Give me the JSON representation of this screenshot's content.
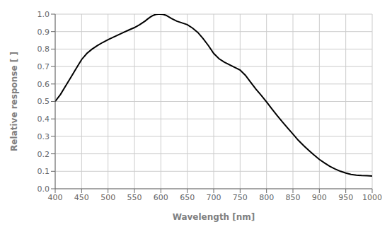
{
  "chart_data": {
    "type": "line",
    "xlabel": "Wavelength [nm]",
    "ylabel": "Relative response [ ]",
    "x": [
      400,
      410,
      420,
      430,
      440,
      450,
      460,
      470,
      480,
      490,
      500,
      510,
      520,
      530,
      540,
      550,
      560,
      570,
      575,
      580,
      585,
      590,
      595,
      600,
      605,
      610,
      620,
      630,
      640,
      650,
      660,
      670,
      680,
      690,
      700,
      710,
      720,
      730,
      740,
      750,
      760,
      770,
      780,
      790,
      800,
      810,
      820,
      830,
      840,
      850,
      860,
      870,
      880,
      890,
      900,
      910,
      920,
      930,
      940,
      950,
      960,
      970,
      980,
      990,
      1000
    ],
    "values": [
      0.5,
      0.54,
      0.59,
      0.64,
      0.69,
      0.74,
      0.775,
      0.8,
      0.82,
      0.838,
      0.854,
      0.868,
      0.882,
      0.896,
      0.91,
      0.923,
      0.94,
      0.96,
      0.972,
      0.983,
      0.992,
      0.998,
      1.0,
      1.0,
      0.998,
      0.993,
      0.975,
      0.96,
      0.95,
      0.94,
      0.92,
      0.895,
      0.86,
      0.82,
      0.775,
      0.745,
      0.725,
      0.71,
      0.695,
      0.68,
      0.65,
      0.61,
      0.57,
      0.535,
      0.497,
      0.458,
      0.42,
      0.383,
      0.348,
      0.313,
      0.278,
      0.248,
      0.22,
      0.193,
      0.168,
      0.147,
      0.128,
      0.113,
      0.1,
      0.09,
      0.082,
      0.078,
      0.076,
      0.075,
      0.073
    ],
    "color": "#000000",
    "xlim": [
      400,
      1000
    ],
    "ylim": [
      0.0,
      1.0
    ],
    "xticks": [
      400,
      450,
      500,
      550,
      600,
      650,
      700,
      750,
      800,
      850,
      900,
      950,
      1000
    ],
    "yticks": [
      {
        "value": 0.0,
        "label": "0.0"
      },
      0.1,
      0.2,
      0.3,
      0.4,
      0.5,
      0.6,
      0.7,
      0.8,
      0.9,
      {
        "value": 1.0,
        "label": "1.0"
      }
    ],
    "grid": true
  }
}
